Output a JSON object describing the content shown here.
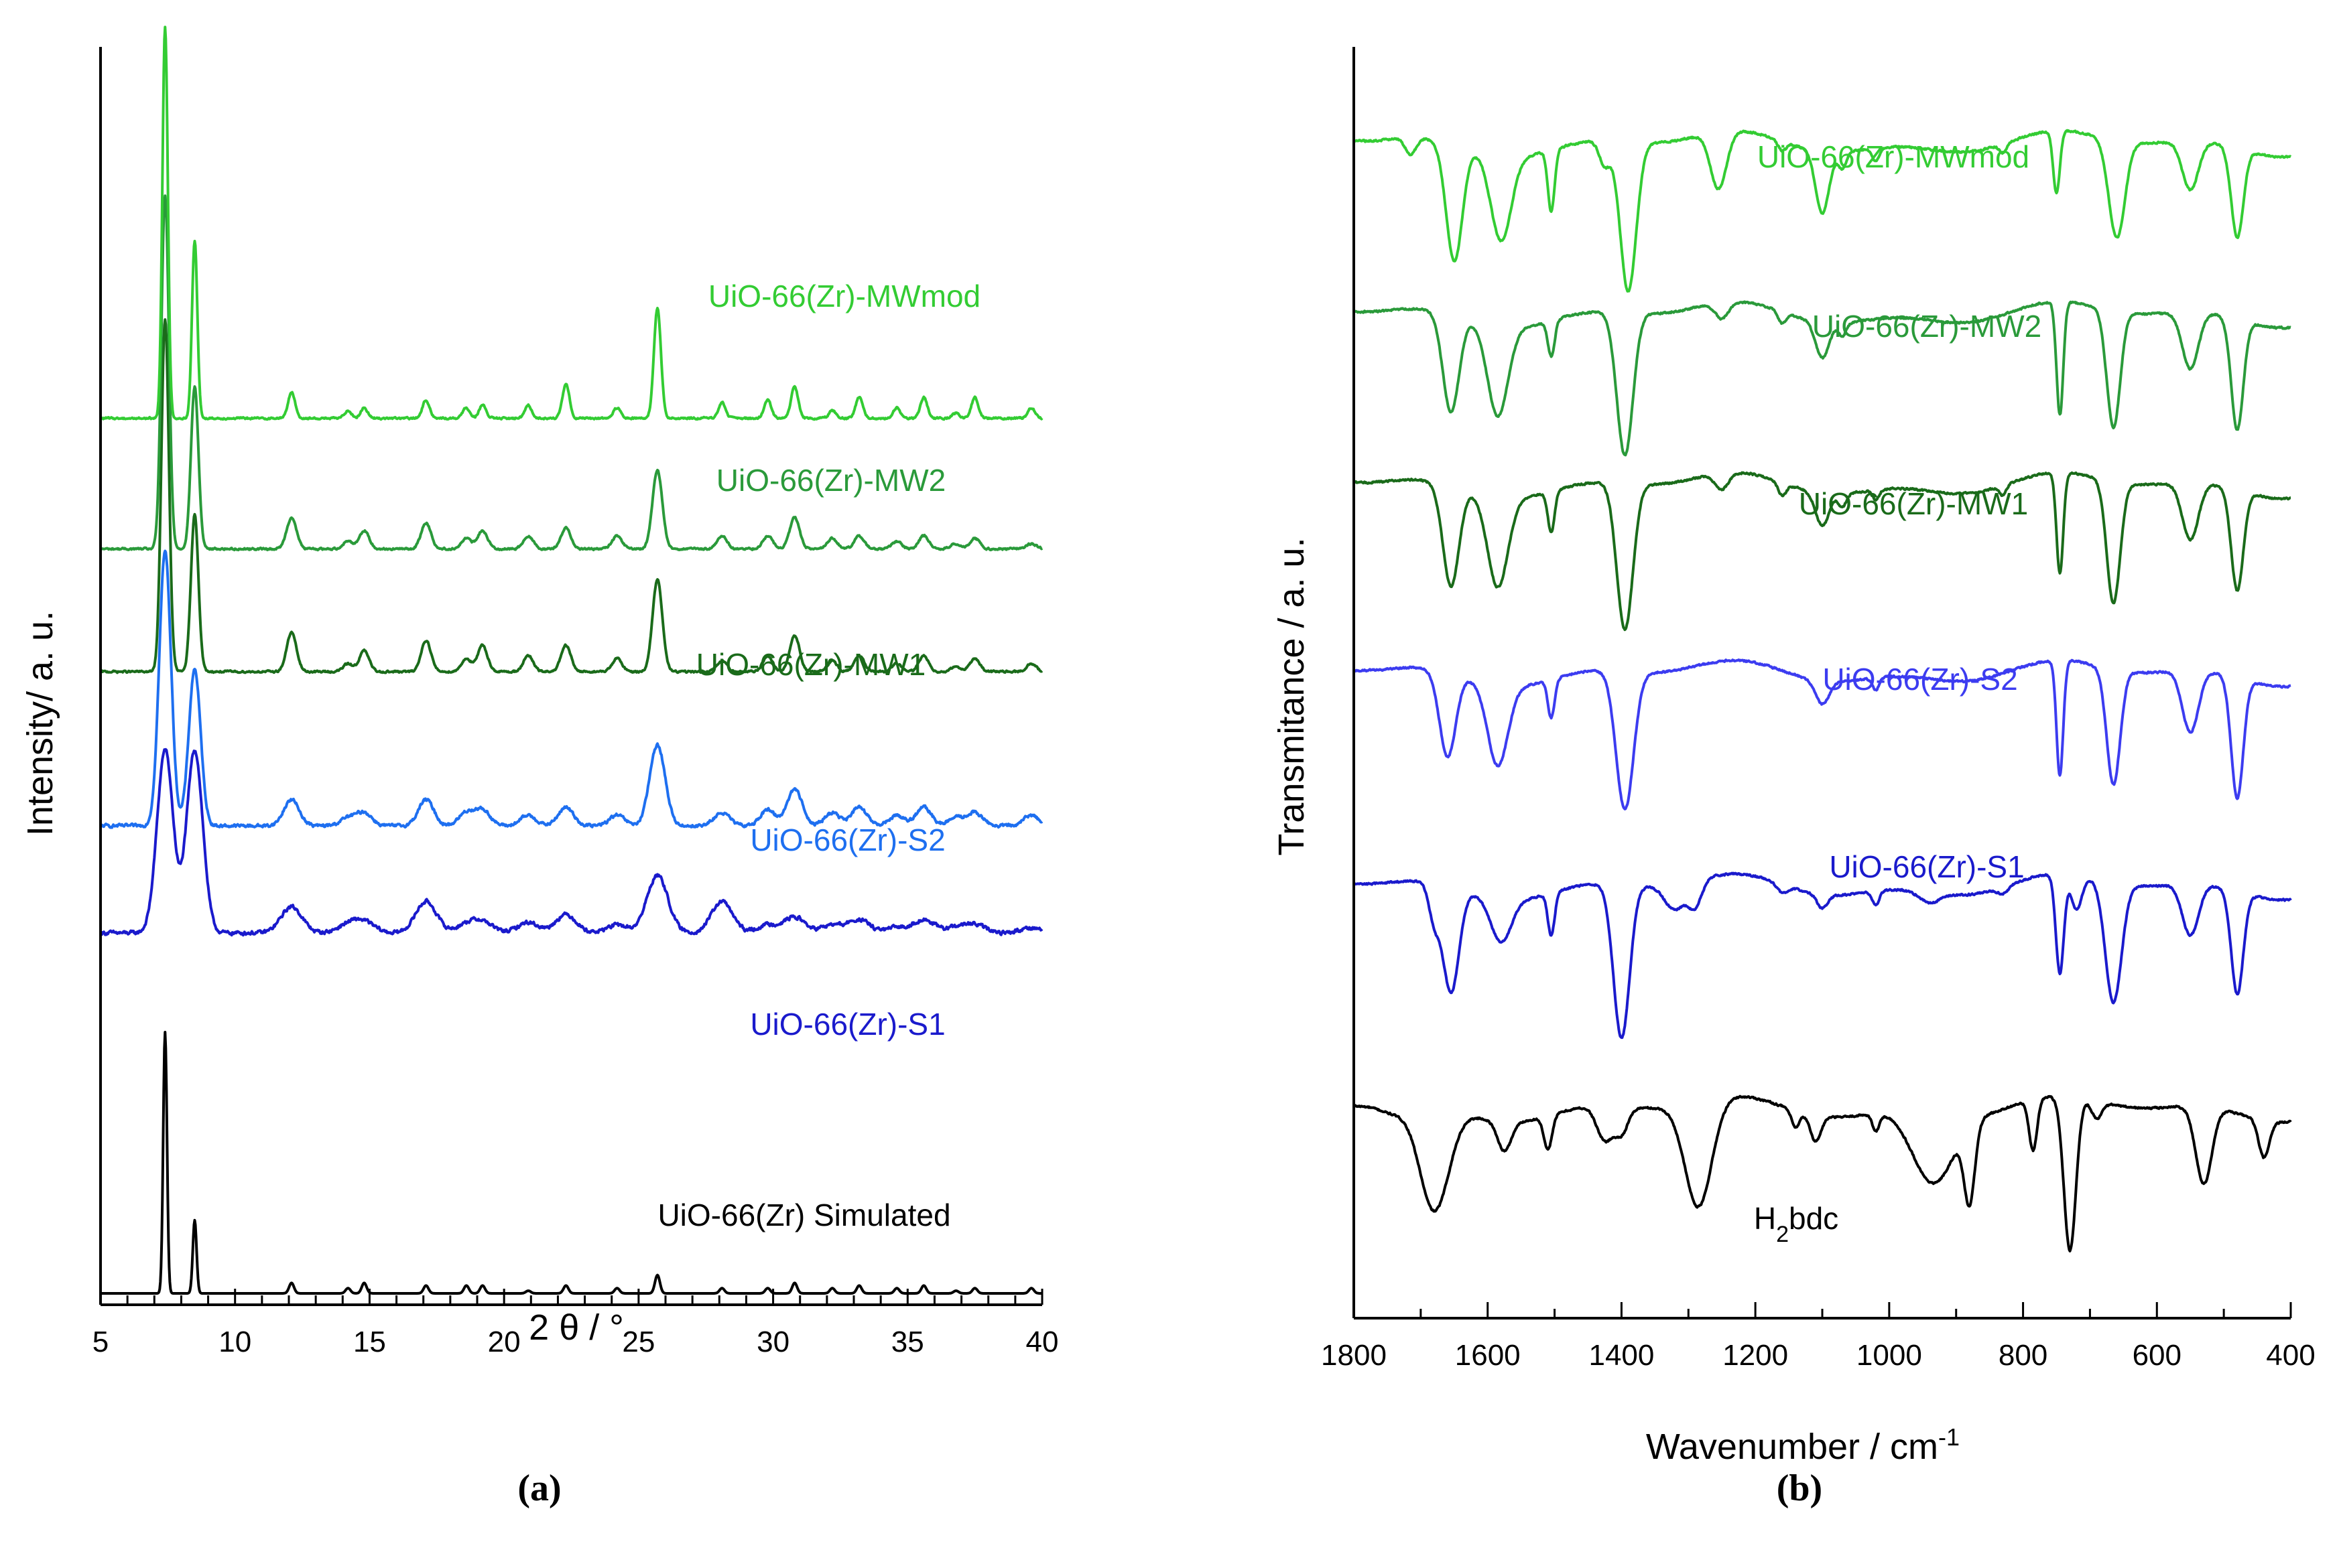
{
  "chart_data": [
    {
      "type": "line",
      "panel": "(a)",
      "title": "",
      "xlabel": "2 θ / °",
      "ylabel": "Intensity/ a. u.",
      "xlim": [
        5,
        40
      ],
      "xticks": [
        "5",
        "10",
        "15",
        "20",
        "25",
        "30",
        "35",
        "40"
      ],
      "grid": false,
      "peaks_2theta": [
        7.4,
        8.5,
        12.1,
        14.2,
        14.8,
        17.1,
        18.6,
        19.2,
        20.9,
        22.3,
        24.2,
        25.7,
        28.1,
        29.8,
        30.8,
        32.2,
        33.2,
        34.6,
        35.6,
        36.8,
        37.5,
        39.6
      ],
      "series": [
        {
          "name": "UiO-66(Zr) Simulated",
          "color": "#000000",
          "offset": 0.0,
          "peak_width": 0.07,
          "noise": 0.0,
          "heights": [
            1.0,
            0.28,
            0.04,
            0.02,
            0.04,
            0.03,
            0.03,
            0.03,
            0.01,
            0.03,
            0.02,
            0.07,
            0.02,
            0.02,
            0.04,
            0.02,
            0.03,
            0.02,
            0.03,
            0.01,
            0.02,
            0.02
          ]
        },
        {
          "name": "UiO-66(Zr)-S1",
          "color": "#1a1acc",
          "offset": 1.38,
          "peak_width": 0.3,
          "noise": 0.012,
          "heights": [
            0.7,
            0.7,
            0.1,
            0.03,
            0.04,
            0.12,
            0.03,
            0.04,
            0.04,
            0.07,
            0.03,
            0.22,
            0.12,
            0.03,
            0.06,
            0.03,
            0.05,
            0.02,
            0.05,
            0.02,
            0.03,
            0.02
          ]
        },
        {
          "name": "UiO-66(Zr)-S2",
          "color": "#1e6ff0",
          "offset": 1.79,
          "peak_width": 0.22,
          "noise": 0.01,
          "heights": [
            1.05,
            0.6,
            0.1,
            0.03,
            0.05,
            0.1,
            0.05,
            0.06,
            0.04,
            0.07,
            0.04,
            0.31,
            0.05,
            0.06,
            0.14,
            0.05,
            0.07,
            0.04,
            0.07,
            0.03,
            0.05,
            0.04
          ]
        },
        {
          "name": "UiO-66(Zr)-MW1",
          "color": "#1a6b1a",
          "offset": 2.38,
          "peak_width": 0.14,
          "noise": 0.006,
          "heights": [
            1.35,
            0.6,
            0.15,
            0.03,
            0.08,
            0.12,
            0.05,
            0.1,
            0.06,
            0.1,
            0.05,
            0.35,
            0.04,
            0.06,
            0.14,
            0.04,
            0.06,
            0.03,
            0.06,
            0.02,
            0.05,
            0.03
          ]
        },
        {
          "name": "UiO-66(Zr)-MW2",
          "color": "#2a9a3a",
          "offset": 2.85,
          "peak_width": 0.14,
          "noise": 0.006,
          "heights": [
            1.35,
            0.62,
            0.12,
            0.03,
            0.07,
            0.1,
            0.04,
            0.07,
            0.05,
            0.08,
            0.05,
            0.3,
            0.05,
            0.05,
            0.12,
            0.04,
            0.05,
            0.03,
            0.05,
            0.02,
            0.04,
            0.02
          ]
        },
        {
          "name": "UiO-66(Zr)-MWmod",
          "color": "#33cc33",
          "offset": 3.35,
          "peak_width": 0.1,
          "noise": 0.006,
          "heights": [
            1.5,
            0.68,
            0.1,
            0.03,
            0.04,
            0.07,
            0.04,
            0.05,
            0.05,
            0.13,
            0.04,
            0.42,
            0.06,
            0.07,
            0.12,
            0.03,
            0.08,
            0.04,
            0.08,
            0.02,
            0.08,
            0.04
          ]
        }
      ]
    },
    {
      "type": "line",
      "panel": "(b)",
      "title": "",
      "xlabel": "Wavenumber  / cm",
      "xlabel_sup": "-1",
      "ylabel": "Transmitance / a. u.",
      "xlim": [
        1800,
        400
      ],
      "xticks": [
        "1800",
        "1600",
        "1400",
        "1200",
        "1000",
        "800",
        "600",
        "400"
      ],
      "grid": false,
      "series": [
        {
          "name": "H2bdc",
          "name_main": "H",
          "name_sub": "2",
          "name_rest": "bdc",
          "color": "#000000",
          "offset": 0.0,
          "scale": 1.0,
          "bands": [
            [
              1740,
              0.05,
              20
            ],
            [
              1680,
              0.62,
              22
            ],
            [
              1575,
              0.17,
              10
            ],
            [
              1510,
              0.2,
              6
            ],
            [
              1425,
              0.2,
              12
            ],
            [
              1400,
              0.15,
              10
            ],
            [
              1285,
              0.62,
              20
            ],
            [
              1140,
              0.1,
              6
            ],
            [
              1110,
              0.15,
              8
            ],
            [
              1020,
              0.1,
              5
            ],
            [
              935,
              0.4,
              30
            ],
            [
              880,
              0.45,
              8
            ],
            [
              785,
              0.3,
              6
            ],
            [
              730,
              0.9,
              9
            ],
            [
              690,
              0.1,
              8
            ],
            [
              530,
              0.45,
              12
            ],
            [
              440,
              0.22,
              8
            ]
          ]
        },
        {
          "name": "UiO-66(Zr)-S1",
          "color": "#1a1acc",
          "offset": 1.3,
          "scale": 1.0,
          "bands": [
            [
              1680,
              0.2,
              8
            ],
            [
              1655,
              0.62,
              12
            ],
            [
              1580,
              0.25,
              15
            ],
            [
              1505,
              0.25,
              5
            ],
            [
              1400,
              0.9,
              12
            ],
            [
              1320,
              0.15,
              15
            ],
            [
              1290,
              0.15,
              10
            ],
            [
              1160,
              0.05,
              8
            ],
            [
              1100,
              0.08,
              8
            ],
            [
              1020,
              0.08,
              5
            ],
            [
              940,
              0.06,
              15
            ],
            [
              830,
              0.04,
              8
            ],
            [
              745,
              0.58,
              6
            ],
            [
              720,
              0.2,
              8
            ],
            [
              665,
              0.7,
              12
            ],
            [
              550,
              0.3,
              12
            ],
            [
              480,
              0.6,
              9
            ]
          ]
        },
        {
          "name": "UiO-66(Zr)-S2",
          "color": "#3c3cf0",
          "offset": 2.55,
          "scale": 0.9,
          "bands": [
            [
              1660,
              0.55,
              12
            ],
            [
              1585,
              0.52,
              15
            ],
            [
              1505,
              0.25,
              5
            ],
            [
              1395,
              0.9,
              13
            ],
            [
              1100,
              0.15,
              10
            ],
            [
              1020,
              0.08,
              5
            ],
            [
              745,
              0.75,
              5
            ],
            [
              665,
              0.75,
              10
            ],
            [
              550,
              0.4,
              12
            ],
            [
              480,
              0.78,
              9
            ]
          ]
        },
        {
          "name": "UiO-66(Zr)-MW1",
          "color": "#1a6b1a",
          "offset": 3.65,
          "scale": 0.95,
          "bands": [
            [
              1655,
              0.62,
              12
            ],
            [
              1585,
              0.55,
              15
            ],
            [
              1505,
              0.25,
              5
            ],
            [
              1395,
              0.9,
              12
            ],
            [
              1250,
              0.1,
              10
            ],
            [
              1160,
              0.08,
              6
            ],
            [
              1100,
              0.2,
              10
            ],
            [
              1070,
              0.08,
              6
            ],
            [
              1020,
              0.06,
              5
            ],
            [
              830,
              0.06,
              5
            ],
            [
              745,
              0.62,
              5
            ],
            [
              665,
              0.75,
              10
            ],
            [
              550,
              0.35,
              12
            ],
            [
              480,
              0.62,
              9
            ]
          ]
        },
        {
          "name": "UiO-66(Zr)-MW2",
          "color": "#2a9a3a",
          "offset": 4.65,
          "scale": 0.95,
          "bands": [
            [
              1655,
              0.6,
              12
            ],
            [
              1585,
              0.55,
              15
            ],
            [
              1505,
              0.22,
              5
            ],
            [
              1395,
              0.88,
              12
            ],
            [
              1250,
              0.1,
              10
            ],
            [
              1160,
              0.07,
              6
            ],
            [
              1100,
              0.22,
              10
            ],
            [
              1070,
              0.08,
              6
            ],
            [
              745,
              0.7,
              5
            ],
            [
              665,
              0.72,
              10
            ],
            [
              550,
              0.35,
              12
            ],
            [
              480,
              0.68,
              9
            ]
          ]
        },
        {
          "name": "UiO-66(Zr)-MWmod",
          "color": "#33cc33",
          "offset": 5.65,
          "scale": 0.95,
          "bands": [
            [
              1715,
              0.1,
              8
            ],
            [
              1650,
              0.72,
              12
            ],
            [
              1580,
              0.52,
              15
            ],
            [
              1505,
              0.38,
              5
            ],
            [
              1425,
              0.15,
              8
            ],
            [
              1390,
              0.92,
              12
            ],
            [
              1255,
              0.35,
              12
            ],
            [
              1160,
              0.06,
              6
            ],
            [
              1100,
              0.38,
              10
            ],
            [
              1070,
              0.1,
              6
            ],
            [
              1020,
              0.08,
              5
            ],
            [
              830,
              0.06,
              5
            ],
            [
              750,
              0.38,
              5
            ],
            [
              660,
              0.6,
              12
            ],
            [
              550,
              0.3,
              12
            ],
            [
              480,
              0.55,
              9
            ]
          ]
        }
      ]
    }
  ]
}
